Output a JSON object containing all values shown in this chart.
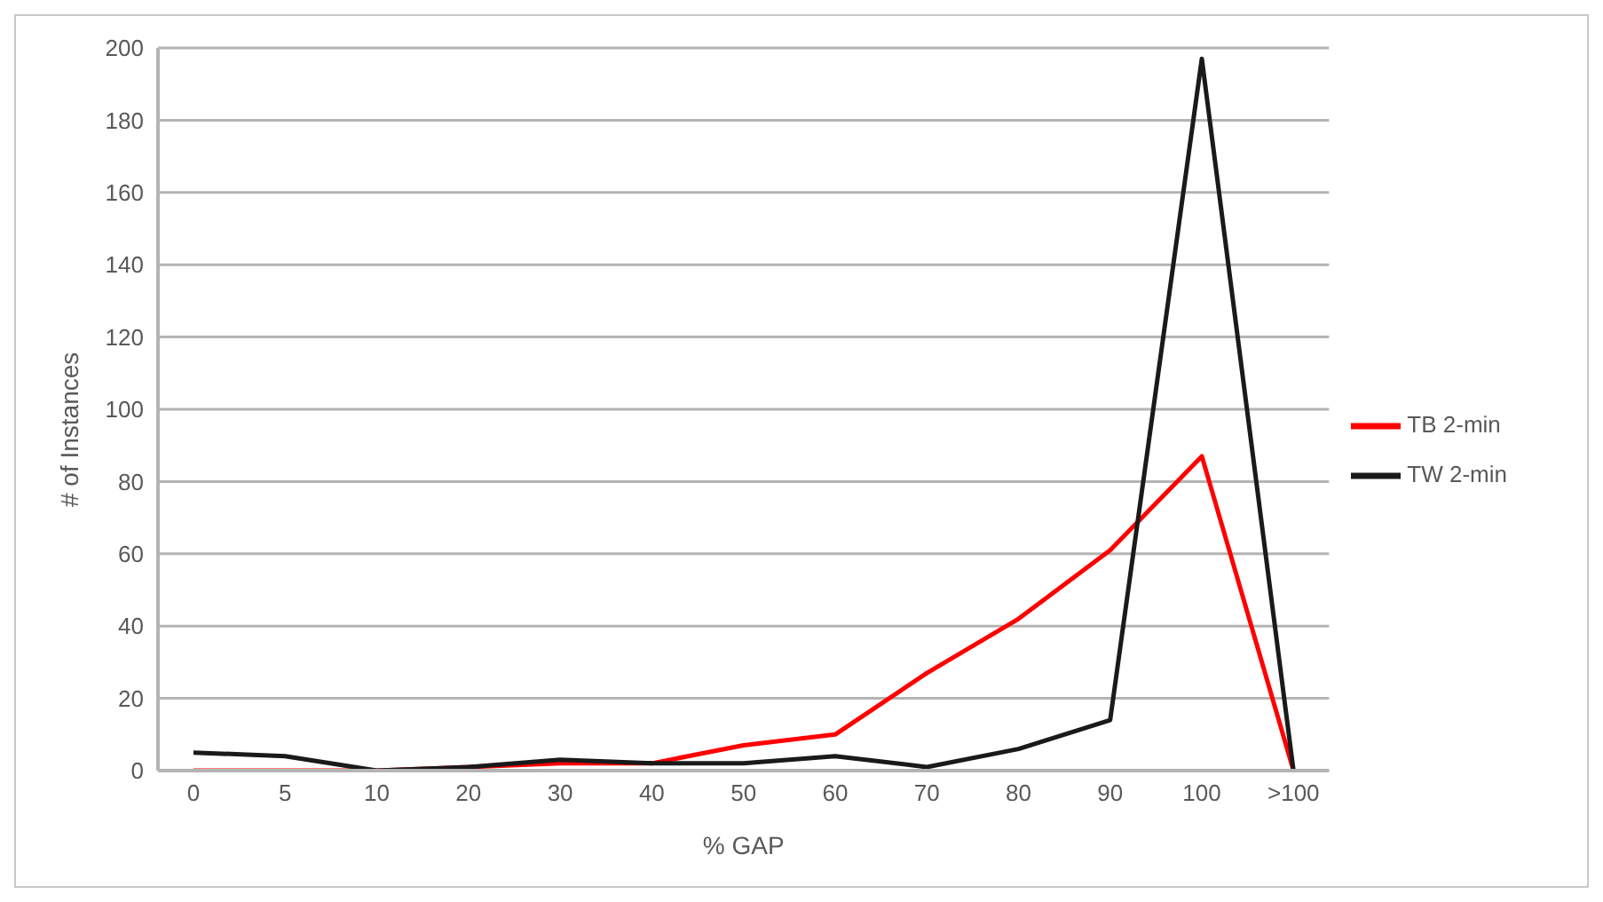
{
  "chart_data": {
    "type": "line",
    "xlabel": "% GAP",
    "ylabel": "# of Instances",
    "categories": [
      "0",
      "5",
      "10",
      "20",
      "30",
      "40",
      "50",
      "60",
      "70",
      "80",
      "90",
      "100",
      ">100"
    ],
    "series": [
      {
        "name": "TB 2-min",
        "color": "#ff0000",
        "values": [
          0,
          0,
          0,
          1,
          2,
          2,
          7,
          10,
          27,
          42,
          61,
          87,
          0
        ]
      },
      {
        "name": "TW 2-min",
        "color": "#1a1a1a",
        "values": [
          5,
          4,
          0,
          1,
          3,
          2,
          2,
          4,
          1,
          6,
          14,
          197,
          0
        ]
      }
    ],
    "ylim": [
      0,
      200
    ],
    "yticks": [
      0,
      20,
      40,
      60,
      80,
      100,
      120,
      140,
      160,
      180,
      200
    ],
    "grid": "y",
    "legend": "right",
    "marker": "none",
    "line_style": "solid"
  }
}
